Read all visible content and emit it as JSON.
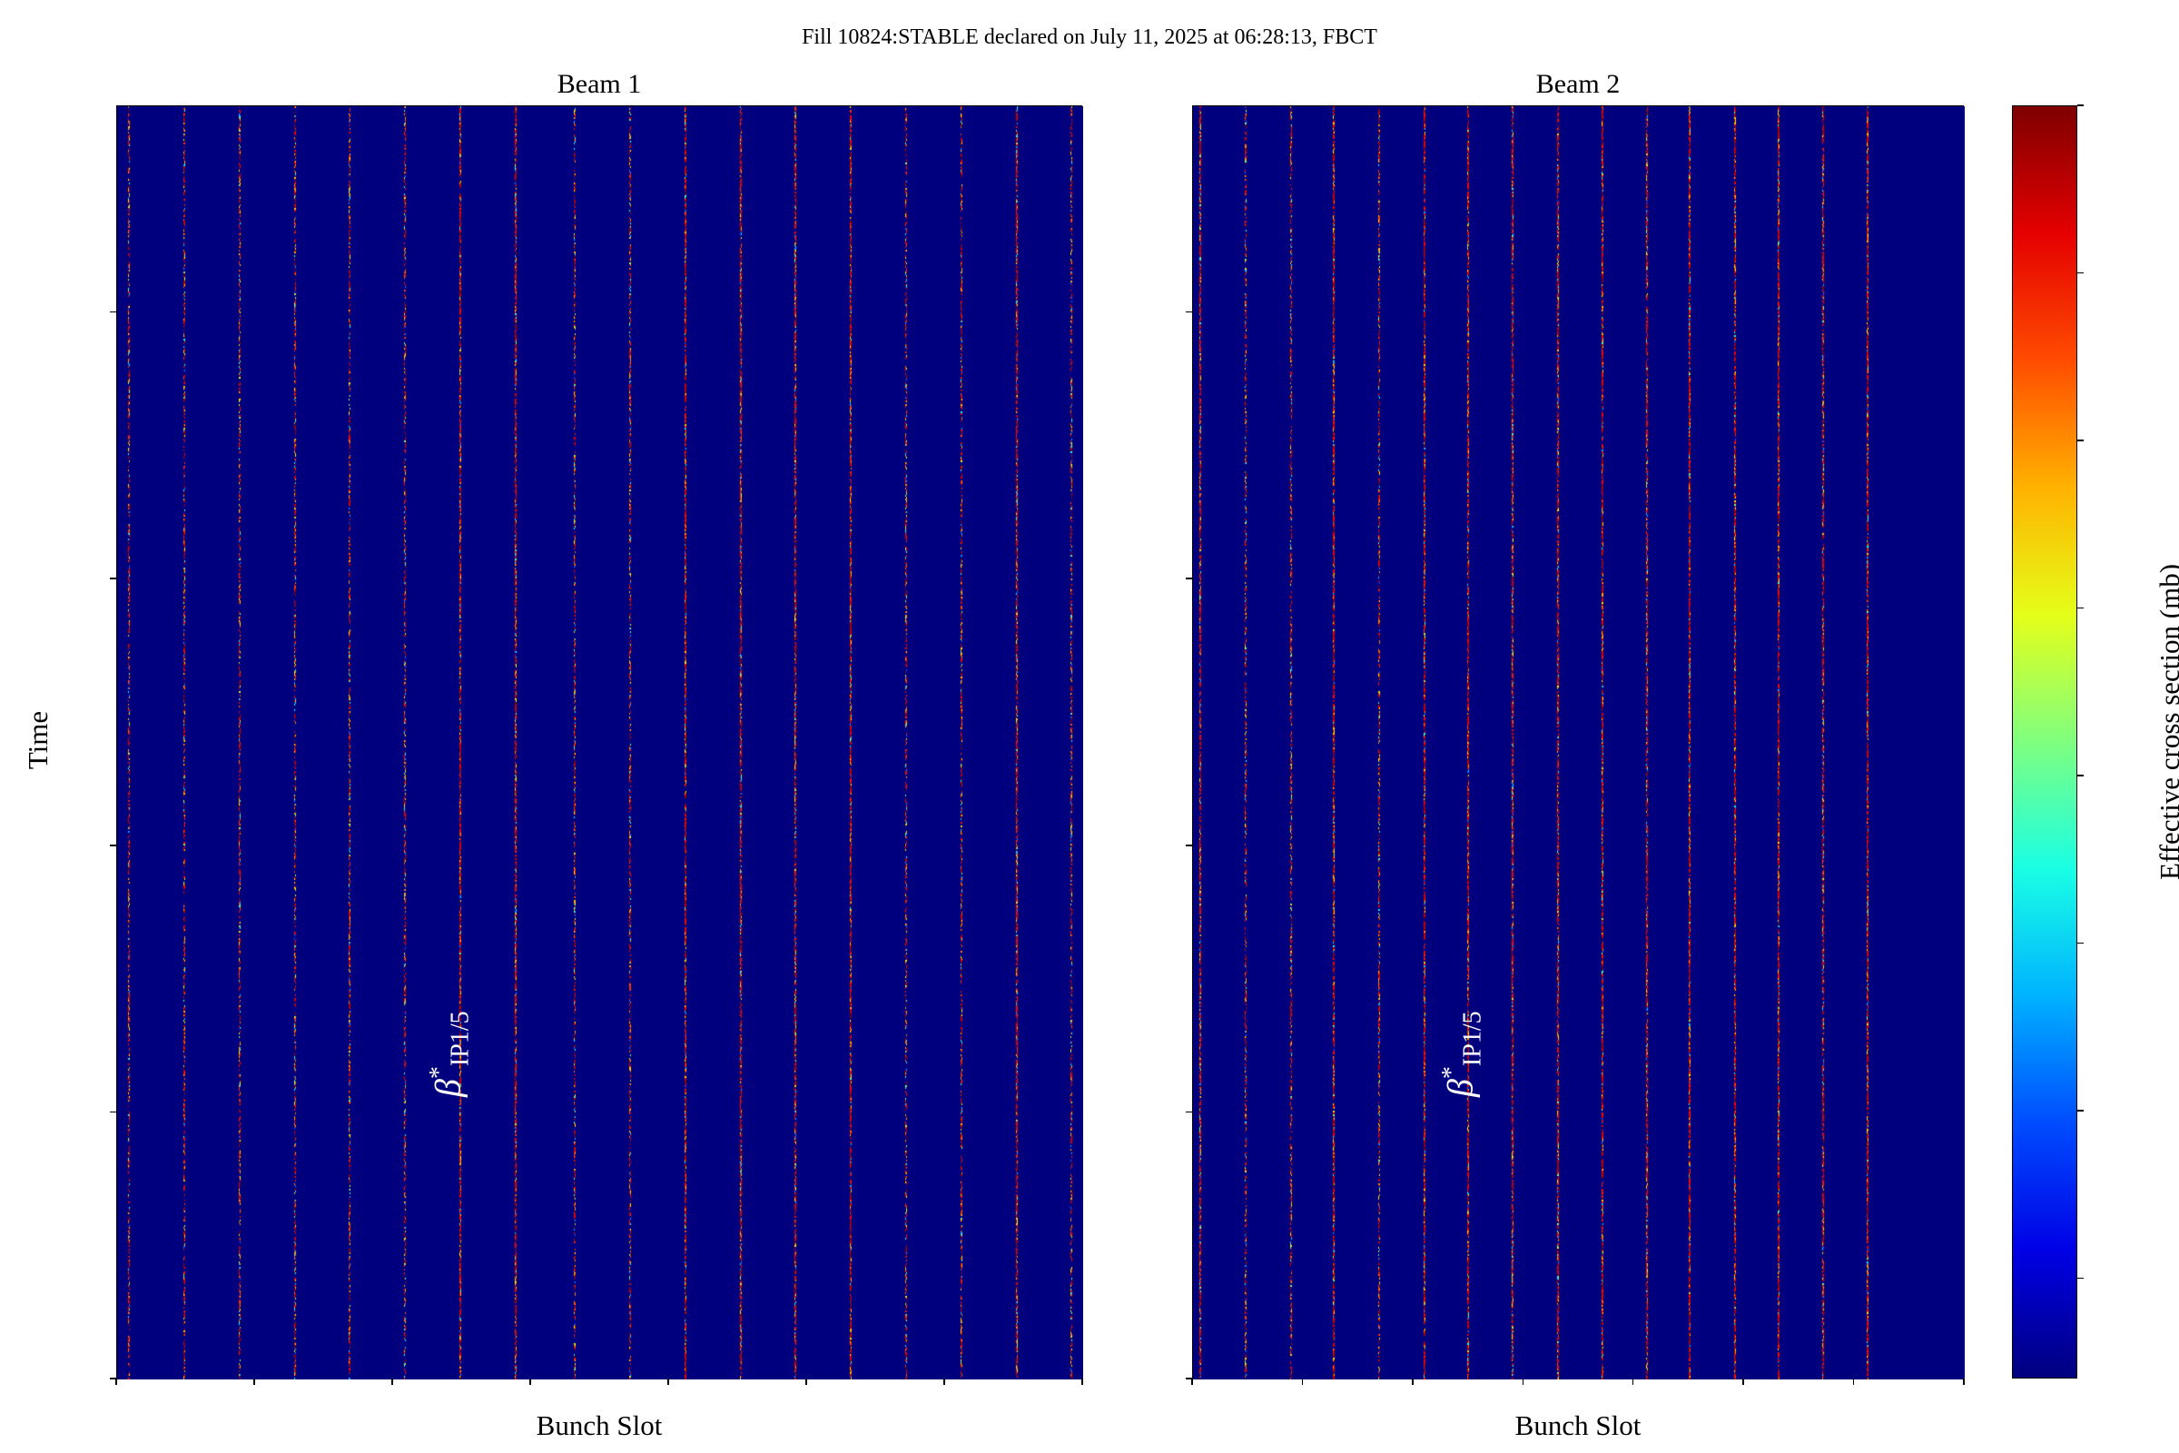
{
  "suptitle": "Fill 10824:STABLE declared on July 11, 2025 at 06:28:13, FBCT",
  "chart_data": [
    {
      "type": "heatmap",
      "title": "Beam 1",
      "xlabel": "Bunch Slot",
      "ylabel": "Time",
      "xlim": [
        1000,
        1700
      ],
      "ylim": [
        0,
        4775
      ],
      "xticks": [
        "1000",
        "1100",
        "1200",
        "1300",
        "1400",
        "1500",
        "1600",
        "1700"
      ],
      "yticks": [
        "0",
        "1000",
        "2000",
        "3000",
        "4000"
      ],
      "filled_slots": [
        1008,
        1048,
        1088,
        1128,
        1168,
        1208,
        1248,
        1288,
        1331,
        1371,
        1411,
        1451,
        1491,
        1531,
        1571,
        1611,
        1651,
        1691
      ],
      "annotation": {
        "symbol": "β",
        "sup": "*",
        "sub": "IP1/5",
        "x": 1242,
        "y": 1500
      }
    },
    {
      "type": "heatmap",
      "title": "Beam 2",
      "xlabel": "Bunch Slot",
      "ylabel": "",
      "xlim": [
        1000,
        1700
      ],
      "ylim": [
        0,
        4775
      ],
      "xticks": [
        "1000",
        "1100",
        "1200",
        "1300",
        "1400",
        "1500",
        "1600",
        "1700"
      ],
      "yticks": [
        "0",
        "1000",
        "2000",
        "3000",
        "4000"
      ],
      "filled_slots": [
        1006,
        1047,
        1088,
        1127,
        1168,
        1209,
        1249,
        1289,
        1330,
        1371,
        1411,
        1450,
        1491,
        1530,
        1571,
        1611
      ],
      "annotation": {
        "symbol": "β",
        "sup": "*",
        "sub": "IP1/5",
        "x": 1245,
        "y": 1500
      }
    }
  ],
  "colorbar": {
    "label": "Effective cross section (mb)",
    "range": [
      60,
      250
    ],
    "ticks": [
      "75",
      "100",
      "125",
      "150",
      "175",
      "200",
      "225",
      "250"
    ],
    "colormap": "jet",
    "background_value": 60
  }
}
